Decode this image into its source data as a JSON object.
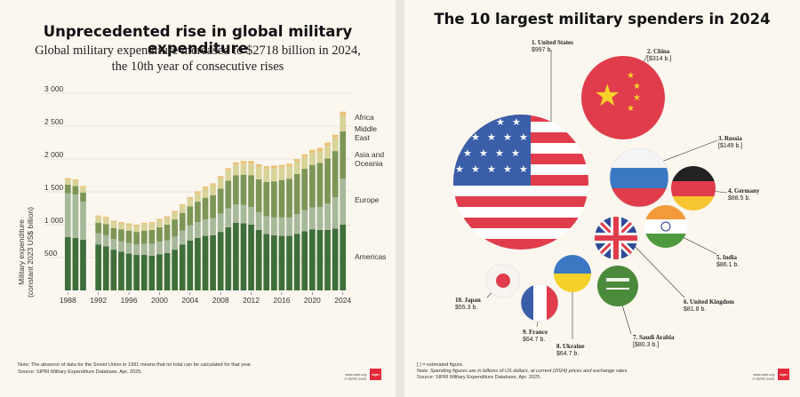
{
  "left": {
    "title": "Unprecedented rise in global military expenditure",
    "subtitle_line1": "Global military expenditure increased to $2718 billion in 2024,",
    "subtitle_line2": "the 10th year of consecutive rises",
    "note": "Note: The absence of data for the Soviet Union in 1991 means that no total can be calculated for that year.",
    "source": "Source: SIPRI Military Expenditure Database, Apr. 2025.",
    "logo_text": "sipri",
    "site": "www.sipri.org",
    "copyright": "© SIPRI 2025"
  },
  "right": {
    "title": "The 10 largest military spenders in 2024",
    "note1": "[ ] = estimated figure.",
    "note2": "Note: Spending figures are in billions of US dollars, at current (2024) prices and exchange rates.",
    "source": "Source: SIPRI Military Expenditure Database, Apr. 2025.",
    "logo_text": "sipri",
    "site": "www.sipri.org",
    "copyright": "© SIPRI 2025"
  },
  "chart_data": [
    {
      "type": "bar",
      "stacked": true,
      "ylabel_line1": "Military expenditure",
      "ylabel_line2": "(constant 2023 US$ billion)",
      "ylim": [
        0,
        3000
      ],
      "yticks": [
        500,
        1000,
        1500,
        2000,
        2500,
        3000
      ],
      "ytick_labels": [
        "500",
        "1 000",
        "1 500",
        "2 000",
        "2 500",
        "3 000"
      ],
      "xticks": [
        1988,
        1992,
        1996,
        2000,
        2004,
        2008,
        2012,
        2016,
        2020,
        2024
      ],
      "years": [
        1988,
        1989,
        1990,
        1991,
        1992,
        1993,
        1994,
        1995,
        1996,
        1997,
        1998,
        1999,
        2000,
        2001,
        2002,
        2003,
        2004,
        2005,
        2006,
        2007,
        2008,
        2009,
        2010,
        2011,
        2012,
        2013,
        2014,
        2015,
        2016,
        2017,
        2018,
        2019,
        2020,
        2021,
        2022,
        2023,
        2024
      ],
      "series": [
        {
          "name": "Americas",
          "color": "#3f6e3a",
          "values": [
            810,
            800,
            770,
            null,
            700,
            670,
            620,
            590,
            560,
            540,
            540,
            530,
            550,
            570,
            620,
            700,
            760,
            800,
            830,
            840,
            890,
            960,
            1030,
            1020,
            1000,
            920,
            860,
            840,
            830,
            830,
            860,
            900,
            930,
            920,
            920,
            940,
            1000
          ]
        },
        {
          "name": "Europe",
          "color": "#a8b89b",
          "values": [
            670,
            660,
            580,
            null,
            170,
            170,
            160,
            160,
            160,
            160,
            170,
            180,
            190,
            190,
            200,
            210,
            230,
            240,
            250,
            260,
            280,
            290,
            280,
            280,
            270,
            270,
            270,
            270,
            280,
            280,
            300,
            320,
            330,
            350,
            400,
            480,
            700
          ]
        },
        {
          "name": "Asia and Oceania",
          "color": "#7d9658",
          "values": [
            130,
            130,
            140,
            null,
            160,
            170,
            170,
            180,
            190,
            190,
            200,
            210,
            220,
            240,
            260,
            270,
            290,
            310,
            330,
            350,
            380,
            420,
            440,
            460,
            480,
            500,
            520,
            550,
            570,
            590,
            610,
            630,
            650,
            670,
            690,
            700,
            720
          ]
        },
        {
          "name": "Middle East",
          "color": "#d8d398",
          "values": [
            80,
            80,
            80,
            null,
            90,
            90,
            90,
            90,
            90,
            90,
            100,
            100,
            110,
            110,
            110,
            110,
            120,
            130,
            140,
            150,
            160,
            160,
            160,
            170,
            180,
            190,
            200,
            200,
            190,
            190,
            190,
            180,
            180,
            180,
            190,
            200,
            240
          ]
        },
        {
          "name": "Africa",
          "color": "#ebc27a",
          "values": [
            20,
            20,
            20,
            null,
            20,
            20,
            20,
            20,
            20,
            20,
            20,
            20,
            20,
            20,
            20,
            20,
            20,
            30,
            30,
            30,
            30,
            30,
            40,
            40,
            40,
            40,
            40,
            40,
            40,
            40,
            40,
            40,
            50,
            50,
            50,
            50,
            60
          ]
        }
      ]
    },
    {
      "type": "bubble",
      "unit": "US$ billion",
      "items": [
        {
          "rank": "1.",
          "country": "United States",
          "value_label": "$997 b.",
          "value": 997,
          "flag": "usa-flag"
        },
        {
          "rank": "2.",
          "country": "China",
          "value_label": "[$314 b.]",
          "value": 314,
          "flag": "china-flag"
        },
        {
          "rank": "3.",
          "country": "Russia",
          "value_label": "[$149 b.]",
          "value": 149,
          "flag": "russia-flag"
        },
        {
          "rank": "4.",
          "country": "Germany",
          "value_label": "$88.5 b.",
          "value": 88.5,
          "flag": "germany-flag"
        },
        {
          "rank": "5.",
          "country": "India",
          "value_label": "$86.1 b.",
          "value": 86.1,
          "flag": "india-flag"
        },
        {
          "rank": "6.",
          "country": "United Kingdom",
          "value_label": "$81.8 b.",
          "value": 81.8,
          "flag": "uk-flag"
        },
        {
          "rank": "7.",
          "country": "Saudi Arabia",
          "value_label": "[$80.3 b.]",
          "value": 80.3,
          "flag": "saudi-flag"
        },
        {
          "rank": "8.",
          "country": "Ukraine",
          "value_label": "$64.7 b.",
          "value": 64.7,
          "flag": "ukraine-flag"
        },
        {
          "rank": "9.",
          "country": "France",
          "value_label": "$64.7 b.",
          "value": 64.7,
          "flag": "france-flag"
        },
        {
          "rank": "10.",
          "country": "Japan",
          "value_label": "$55.3 b.",
          "value": 55.3,
          "flag": "japan-flag"
        }
      ]
    }
  ]
}
